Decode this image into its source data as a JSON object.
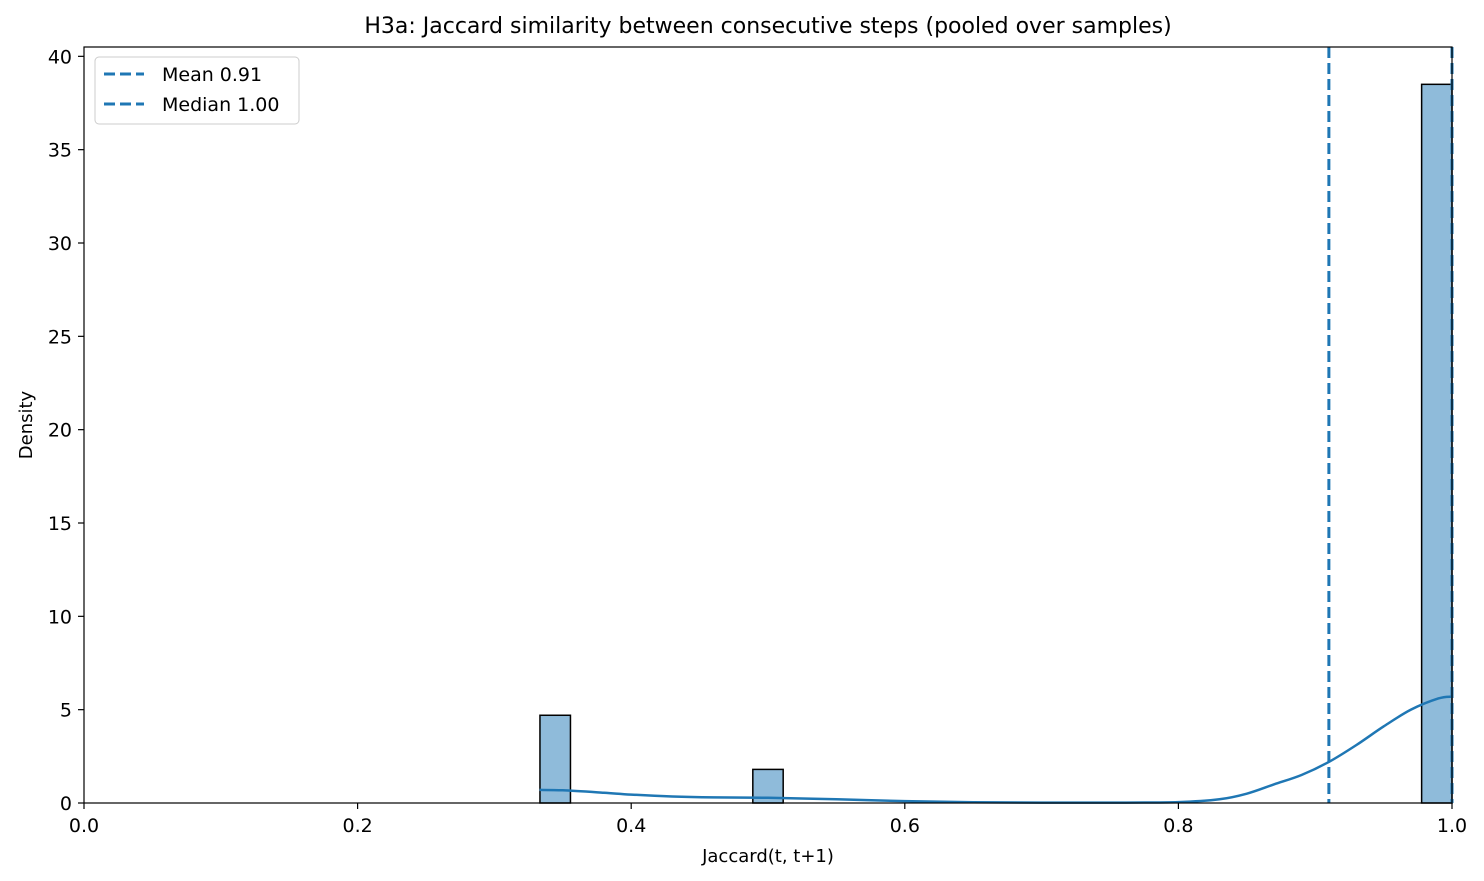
{
  "chart_data": {
    "type": "bar",
    "title": "H3a: Jaccard similarity between consecutive steps (pooled over samples)",
    "xlabel": "Jaccard(t, t+1)",
    "ylabel": "Density",
    "xlim": [
      0.0,
      1.0
    ],
    "ylim": [
      0,
      40.5
    ],
    "xticks": [
      0.0,
      0.2,
      0.4,
      0.6,
      0.8,
      1.0
    ],
    "xtick_labels": [
      "0.0",
      "0.2",
      "0.4",
      "0.6",
      "0.8",
      "1.0"
    ],
    "yticks": [
      0,
      5,
      10,
      15,
      20,
      25,
      30,
      35,
      40
    ],
    "ytick_labels": [
      "0",
      "5",
      "10",
      "15",
      "20",
      "25",
      "30",
      "35",
      "40"
    ],
    "grid": false,
    "legend_position": "top-left",
    "histogram": {
      "bin_edges": [
        0.3333,
        0.3556,
        0.4889,
        0.5111,
        0.9778,
        1.0
      ],
      "bars": [
        {
          "x0": 0.3333,
          "x1": 0.3556,
          "density": 4.7
        },
        {
          "x0": 0.4889,
          "x1": 0.5111,
          "density": 1.8
        },
        {
          "x0": 0.9778,
          "x1": 1.0,
          "density": 38.5
        }
      ],
      "fill_color": "#8fbbda",
      "edge_color": "#000000"
    },
    "kde": {
      "color": "#1f77b4",
      "x": [
        0.333,
        0.35,
        0.38,
        0.4,
        0.43,
        0.46,
        0.5,
        0.55,
        0.6,
        0.65,
        0.7,
        0.75,
        0.8,
        0.83,
        0.85,
        0.87,
        0.89,
        0.91,
        0.93,
        0.95,
        0.97,
        0.99,
        1.0
      ],
      "y": [
        0.7,
        0.68,
        0.55,
        0.45,
        0.35,
        0.3,
        0.28,
        0.2,
        0.1,
        0.04,
        0.02,
        0.02,
        0.05,
        0.2,
        0.5,
        1.0,
        1.5,
        2.2,
        3.1,
        4.1,
        5.0,
        5.6,
        5.7
      ]
    },
    "reference_lines": [
      {
        "name": "Mean 0.91",
        "x": 0.91,
        "color": "#1f77b4",
        "style": "dashed"
      },
      {
        "name": "Median 1.00",
        "x": 1.0,
        "color": "#1f77b4",
        "style": "dashed"
      }
    ]
  }
}
